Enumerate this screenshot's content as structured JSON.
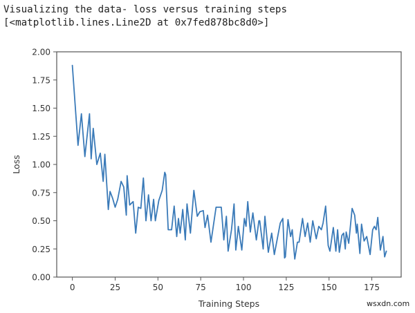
{
  "output": {
    "line1": "Visualizing the data- loss versus training steps",
    "line2": "[<matplotlib.lines.Line2D at 0x7fed878bc8d0>]"
  },
  "watermark": "wsxdn.com",
  "colors": {
    "line": "#3a7ab8",
    "axis": "#555555",
    "text": "#333333"
  },
  "chart_data": {
    "type": "line",
    "title": "",
    "xlabel": "Training Steps",
    "ylabel": "Loss",
    "xlim": [
      -9.15,
      192.15
    ],
    "ylim": [
      0,
      2
    ],
    "xticks": [
      0,
      25,
      50,
      75,
      100,
      125,
      150,
      175
    ],
    "xtick_labels": [
      "0",
      "25",
      "50",
      "75",
      "100",
      "125",
      "150",
      "175"
    ],
    "yticks": [
      0,
      0.25,
      0.5,
      0.75,
      1.0,
      1.25,
      1.5,
      1.75,
      2.0
    ],
    "ytick_labels": [
      "0.00",
      "0.25",
      "0.50",
      "0.75",
      "1.00",
      "1.25",
      "1.50",
      "1.75",
      "2.00"
    ],
    "grid": false,
    "legend": null,
    "series": [
      {
        "name": "loss",
        "x": [
          0,
          3.3,
          5.3,
          7.3,
          10,
          11,
          12.2,
          14.3,
          16.3,
          18,
          19,
          21,
          22,
          23.5,
          25,
          26.5,
          28.5,
          30,
          31.5,
          32,
          33.5,
          35.5,
          37,
          38.5,
          40,
          41.5,
          43,
          44.5,
          46,
          47.5,
          48.5,
          50.5,
          52.5,
          54,
          54.5,
          56,
          58,
          59.5,
          61,
          62,
          63,
          64.5,
          66,
          67,
          69,
          71,
          73,
          74.5,
          76.5,
          77.5,
          79,
          81,
          84,
          87,
          88.5,
          90,
          91,
          93,
          94.5,
          95.5,
          97,
          99,
          100.5,
          101.5,
          102.5,
          104,
          105.5,
          107.5,
          109,
          109.5,
          111.5,
          112.5,
          114.5,
          116.5,
          118,
          121.5,
          123,
          124,
          124.5,
          126,
          127.5,
          128.5,
          130,
          131.5,
          132.5,
          134.5,
          136,
          137.5,
          139,
          140.5,
          142.5,
          144,
          145.5,
          146.5,
          148,
          149.5,
          150.5,
          152.5,
          154,
          155,
          156,
          157.5,
          158.5,
          159.5,
          160,
          161.5,
          163.5,
          165,
          166,
          166.5,
          168,
          169,
          170.5,
          172,
          174,
          175.5,
          176.5,
          177.5,
          178.5,
          180,
          181.5,
          182.5,
          183.5
        ],
        "values": [
          1.88,
          1.17,
          1.45,
          1.07,
          1.45,
          1.05,
          1.32,
          1.0,
          1.1,
          0.85,
          1.09,
          0.6,
          0.76,
          0.7,
          0.62,
          0.69,
          0.85,
          0.8,
          0.55,
          0.9,
          0.64,
          0.67,
          0.39,
          0.62,
          0.61,
          0.88,
          0.5,
          0.73,
          0.5,
          0.69,
          0.5,
          0.68,
          0.77,
          0.93,
          0.91,
          0.42,
          0.42,
          0.63,
          0.36,
          0.52,
          0.39,
          0.6,
          0.33,
          0.65,
          0.39,
          0.77,
          0.54,
          0.58,
          0.59,
          0.44,
          0.55,
          0.31,
          0.62,
          0.62,
          0.33,
          0.54,
          0.23,
          0.42,
          0.65,
          0.24,
          0.45,
          0.24,
          0.52,
          0.45,
          0.67,
          0.4,
          0.57,
          0.33,
          0.5,
          0.5,
          0.25,
          0.54,
          0.22,
          0.39,
          0.2,
          0.48,
          0.52,
          0.17,
          0.18,
          0.51,
          0.36,
          0.42,
          0.16,
          0.31,
          0.31,
          0.52,
          0.36,
          0.48,
          0.31,
          0.5,
          0.34,
          0.45,
          0.42,
          0.48,
          0.63,
          0.28,
          0.23,
          0.44,
          0.23,
          0.42,
          0.22,
          0.37,
          0.39,
          0.25,
          0.4,
          0.3,
          0.61,
          0.55,
          0.39,
          0.47,
          0.21,
          0.47,
          0.32,
          0.36,
          0.2,
          0.42,
          0.45,
          0.42,
          0.53,
          0.24,
          0.36,
          0.18,
          0.23
        ]
      }
    ]
  }
}
